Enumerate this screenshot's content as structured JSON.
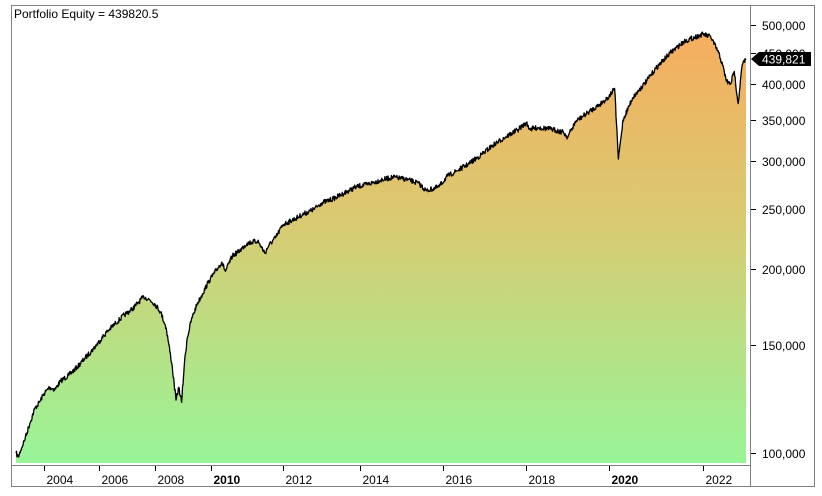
{
  "title": "Portfolio Equity = 439820.5",
  "last_value_label": "439,821",
  "colors": {
    "line": "#000000",
    "fill_top": "#F6AD5E",
    "fill_mid": "#D8CB72",
    "fill_bottom": "#98F598",
    "frame": "#808080",
    "tag_bg": "#000000",
    "tag_text": "#ffffff"
  },
  "y_axis": {
    "scale": "log",
    "ticks": [
      {
        "value": 500000,
        "label": "500,000"
      },
      {
        "value": 450000,
        "label": "450,000"
      },
      {
        "value": 400000,
        "label": "400,000"
      },
      {
        "value": 350000,
        "label": "350,000"
      },
      {
        "value": 300000,
        "label": "300,000"
      },
      {
        "value": 250000,
        "label": "250,000"
      },
      {
        "value": 200000,
        "label": "200,000"
      },
      {
        "value": 150000,
        "label": "150,000"
      },
      {
        "value": 100000,
        "label": "100,000"
      }
    ]
  },
  "x_axis": {
    "ticks": [
      {
        "year": 2004,
        "label": "2004",
        "bold": false
      },
      {
        "year": 2006,
        "label": "2006",
        "bold": false
      },
      {
        "year": 2008,
        "label": "2008",
        "bold": false
      },
      {
        "year": 2010,
        "label": "2010",
        "bold": true
      },
      {
        "year": 2012,
        "label": "2012",
        "bold": false
      },
      {
        "year": 2014,
        "label": "2014",
        "bold": false
      },
      {
        "year": 2016,
        "label": "2016",
        "bold": false
      },
      {
        "year": 2018,
        "label": "2018",
        "bold": false
      },
      {
        "year": 2020,
        "label": "2020",
        "bold": true
      },
      {
        "year": 2022,
        "label": "2022",
        "bold": false
      }
    ]
  },
  "chart_data": {
    "type": "area",
    "title": "Portfolio Equity = 439820.5",
    "xlabel": "",
    "ylabel": "",
    "yscale": "log",
    "ylim": [
      95000,
      520000
    ],
    "xlim": [
      2002.8,
      2023.1
    ],
    "grid": false,
    "legend": "none",
    "last_value": 439820.5,
    "series": [
      {
        "name": "Portfolio Equity",
        "x": [
          2002.8,
          2002.9,
          2003.0,
          2003.2,
          2003.4,
          2003.6,
          2003.8,
          2004.0,
          2004.2,
          2004.4,
          2004.6,
          2004.9,
          2005.2,
          2005.5,
          2005.8,
          2006.1,
          2006.3,
          2006.6,
          2006.9,
          2007.2,
          2007.4,
          2007.6,
          2007.8,
          2008.0,
          2008.2,
          2008.4,
          2008.6,
          2008.75,
          2008.85,
          2008.95,
          2009.05,
          2009.15,
          2009.3,
          2009.5,
          2009.7,
          2009.9,
          2010.1,
          2010.3,
          2010.4,
          2010.6,
          2010.8,
          2011.0,
          2011.3,
          2011.5,
          2011.6,
          2011.8,
          2012.0,
          2012.3,
          2012.5,
          2012.8,
          2013.0,
          2013.3,
          2013.6,
          2013.9,
          2014.2,
          2014.5,
          2014.8,
          2015.1,
          2015.4,
          2015.6,
          2015.9,
          2016.1,
          2016.3,
          2016.6,
          2016.9,
          2017.2,
          2017.5,
          2017.8,
          2018.0,
          2018.1,
          2018.3,
          2018.6,
          2018.9,
          2019.0,
          2019.2,
          2019.5,
          2019.8,
          2020.0,
          2020.12,
          2020.2,
          2020.3,
          2020.5,
          2020.8,
          2021.0,
          2021.3,
          2021.6,
          2021.9,
          2022.0,
          2022.2,
          2022.4,
          2022.5,
          2022.6,
          2022.7,
          2022.8,
          2022.9,
          2023.0,
          2023.1
        ],
        "values": [
          100000,
          98500,
          101000,
          106000,
          112000,
          118000,
          121000,
          125000,
          128000,
          127000,
          131000,
          134000,
          138000,
          143000,
          148000,
          154000,
          158000,
          163000,
          168000,
          172000,
          176000,
          180000,
          178000,
          175000,
          170000,
          160000,
          140000,
          122000,
          128000,
          121000,
          140000,
          154000,
          165000,
          175000,
          182000,
          190000,
          197000,
          205000,
          198000,
          210000,
          214000,
          220000,
          222000,
          212000,
          218000,
          225000,
          236000,
          241000,
          245000,
          250000,
          256000,
          260000,
          266000,
          272000,
          275000,
          279000,
          282000,
          280000,
          276000,
          268000,
          272000,
          283000,
          288000,
          296000,
          306000,
          318000,
          328000,
          337000,
          346000,
          338000,
          340000,
          338000,
          334000,
          328000,
          348000,
          360000,
          372000,
          382000,
          394000,
          302000,
          350000,
          380000,
          405000,
          425000,
          450000,
          470000,
          480000,
          483000,
          478000,
          450000,
          430000,
          405000,
          400000,
          420000,
          372000,
          430000,
          439820
        ]
      }
    ]
  }
}
